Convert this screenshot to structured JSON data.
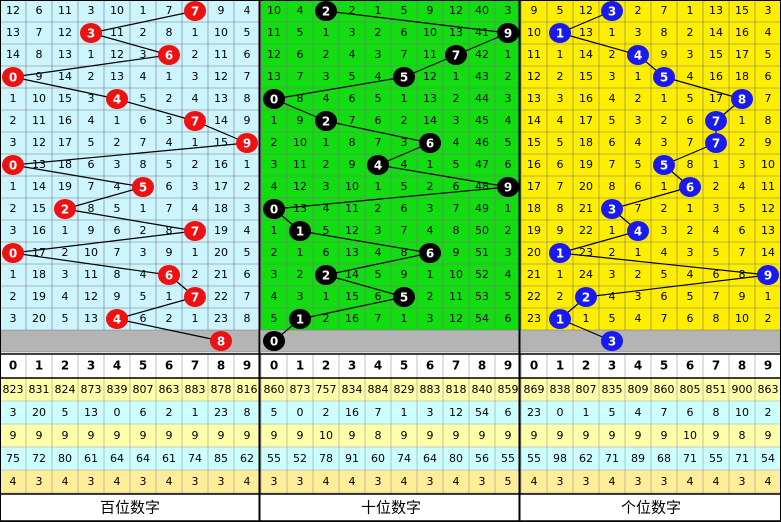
{
  "digits": [
    0,
    1,
    2,
    3,
    4,
    5,
    6,
    7,
    8,
    9
  ],
  "panels": [
    {
      "label": "百位数字",
      "bg": "#ccf5ff",
      "ball": "#ee1111",
      "winners": [
        7,
        3,
        6,
        0,
        4,
        7,
        9,
        0,
        5,
        2,
        7,
        0,
        6,
        7,
        4
      ],
      "pending": 8,
      "rows": [
        [
          12,
          6,
          11,
          3,
          10,
          1,
          7,
          null,
          9,
          4
        ],
        [
          13,
          7,
          12,
          null,
          11,
          2,
          8,
          1,
          10,
          5
        ],
        [
          14,
          8,
          13,
          1,
          12,
          3,
          null,
          2,
          11,
          6
        ],
        [
          null,
          9,
          14,
          2,
          13,
          4,
          1,
          3,
          12,
          7
        ],
        [
          1,
          10,
          15,
          3,
          null,
          5,
          2,
          4,
          13,
          8
        ],
        [
          2,
          11,
          16,
          4,
          1,
          6,
          3,
          null,
          14,
          9
        ],
        [
          3,
          12,
          17,
          5,
          2,
          7,
          4,
          1,
          15,
          null
        ],
        [
          null,
          13,
          18,
          6,
          3,
          8,
          5,
          2,
          16,
          1
        ],
        [
          1,
          14,
          19,
          7,
          4,
          null,
          6,
          3,
          17,
          2
        ],
        [
          2,
          15,
          null,
          8,
          5,
          1,
          7,
          4,
          18,
          3
        ],
        [
          3,
          16,
          1,
          9,
          6,
          2,
          8,
          null,
          19,
          4
        ],
        [
          null,
          17,
          2,
          10,
          7,
          3,
          9,
          1,
          20,
          5
        ],
        [
          1,
          18,
          3,
          11,
          8,
          4,
          null,
          2,
          21,
          6
        ],
        [
          2,
          19,
          4,
          12,
          9,
          5,
          1,
          null,
          22,
          7
        ],
        [
          3,
          20,
          5,
          13,
          null,
          6,
          2,
          1,
          23,
          8
        ]
      ],
      "stats": [
        [
          823,
          831,
          824,
          873,
          839,
          807,
          863,
          883,
          878,
          816
        ],
        [
          3,
          20,
          5,
          13,
          0,
          6,
          2,
          1,
          23,
          8
        ],
        [
          9,
          9,
          9,
          9,
          9,
          9,
          9,
          9,
          9,
          9
        ],
        [
          75,
          72,
          80,
          61,
          64,
          64,
          61,
          74,
          85,
          62
        ],
        [
          4,
          3,
          4,
          3,
          4,
          3,
          4,
          3,
          3,
          4
        ]
      ]
    },
    {
      "label": "十位数字",
      "bg": "#11dd11",
      "ball": "#000000",
      "winners": [
        2,
        9,
        7,
        5,
        0,
        2,
        6,
        4,
        9,
        0,
        1,
        6,
        2,
        5,
        1
      ],
      "pending": 0,
      "rows": [
        [
          10,
          4,
          null,
          2,
          1,
          5,
          9,
          12,
          40,
          3
        ],
        [
          11,
          5,
          1,
          3,
          2,
          6,
          10,
          13,
          41,
          null
        ],
        [
          12,
          6,
          2,
          4,
          3,
          7,
          11,
          null,
          42,
          1
        ],
        [
          13,
          7,
          3,
          5,
          4,
          null,
          12,
          1,
          43,
          2
        ],
        [
          null,
          8,
          4,
          6,
          5,
          1,
          13,
          2,
          44,
          3
        ],
        [
          1,
          9,
          null,
          7,
          6,
          2,
          14,
          3,
          45,
          4
        ],
        [
          2,
          10,
          1,
          8,
          7,
          3,
          null,
          4,
          46,
          5
        ],
        [
          3,
          11,
          2,
          9,
          null,
          4,
          1,
          5,
          47,
          6
        ],
        [
          4,
          12,
          3,
          10,
          1,
          5,
          2,
          6,
          48,
          null
        ],
        [
          null,
          13,
          4,
          11,
          2,
          6,
          3,
          7,
          49,
          1
        ],
        [
          1,
          null,
          5,
          12,
          3,
          7,
          4,
          8,
          50,
          2
        ],
        [
          2,
          1,
          6,
          13,
          4,
          8,
          null,
          9,
          51,
          3
        ],
        [
          3,
          2,
          null,
          14,
          5,
          9,
          1,
          10,
          52,
          4
        ],
        [
          4,
          3,
          1,
          15,
          6,
          null,
          2,
          11,
          53,
          5
        ],
        [
          5,
          null,
          2,
          16,
          7,
          1,
          3,
          12,
          54,
          6
        ]
      ],
      "stats": [
        [
          860,
          873,
          757,
          834,
          884,
          829,
          883,
          818,
          840,
          859
        ],
        [
          5,
          0,
          2,
          16,
          7,
          1,
          3,
          12,
          54,
          6
        ],
        [
          9,
          9,
          10,
          9,
          8,
          9,
          9,
          9,
          9,
          9
        ],
        [
          55,
          52,
          78,
          91,
          60,
          74,
          64,
          80,
          56,
          55
        ],
        [
          3,
          3,
          4,
          4,
          3,
          4,
          3,
          4,
          3,
          5
        ]
      ]
    },
    {
      "label": "个位数字",
      "bg": "#ffee00",
      "ball": "#1a1aee",
      "winners": [
        3,
        1,
        4,
        5,
        8,
        7,
        7,
        5,
        6,
        3,
        4,
        1,
        9,
        2,
        1
      ],
      "pending": 3,
      "rows": [
        [
          9,
          5,
          12,
          null,
          2,
          7,
          1,
          13,
          15,
          3
        ],
        [
          10,
          null,
          13,
          1,
          3,
          8,
          2,
          14,
          16,
          4
        ],
        [
          11,
          1,
          14,
          2,
          null,
          9,
          3,
          15,
          17,
          5
        ],
        [
          12,
          2,
          15,
          3,
          1,
          null,
          4,
          16,
          18,
          6
        ],
        [
          13,
          3,
          16,
          4,
          2,
          1,
          5,
          17,
          null,
          7
        ],
        [
          14,
          4,
          17,
          5,
          3,
          2,
          6,
          null,
          1,
          8
        ],
        [
          15,
          5,
          18,
          6,
          4,
          3,
          7,
          null,
          2,
          9
        ],
        [
          16,
          6,
          19,
          7,
          5,
          null,
          8,
          1,
          3,
          10
        ],
        [
          17,
          7,
          20,
          8,
          6,
          1,
          null,
          2,
          4,
          11
        ],
        [
          18,
          8,
          21,
          null,
          7,
          2,
          1,
          3,
          5,
          12
        ],
        [
          19,
          9,
          22,
          1,
          null,
          3,
          2,
          4,
          6,
          13
        ],
        [
          20,
          null,
          23,
          2,
          1,
          4,
          3,
          5,
          7,
          14
        ],
        [
          21,
          1,
          24,
          3,
          2,
          5,
          4,
          6,
          8,
          null
        ],
        [
          22,
          2,
          null,
          4,
          3,
          6,
          5,
          7,
          9,
          1
        ],
        [
          23,
          null,
          1,
          5,
          4,
          7,
          6,
          8,
          10,
          2
        ]
      ],
      "stats": [
        [
          869,
          838,
          807,
          835,
          809,
          860,
          805,
          851,
          900,
          863
        ],
        [
          23,
          0,
          1,
          5,
          4,
          7,
          6,
          8,
          10,
          2
        ],
        [
          9,
          9,
          9,
          9,
          9,
          9,
          10,
          9,
          8,
          9
        ],
        [
          55,
          98,
          62,
          71,
          89,
          68,
          71,
          55,
          71,
          54
        ],
        [
          4,
          3,
          3,
          4,
          3,
          3,
          4,
          4,
          3,
          4
        ]
      ]
    }
  ]
}
